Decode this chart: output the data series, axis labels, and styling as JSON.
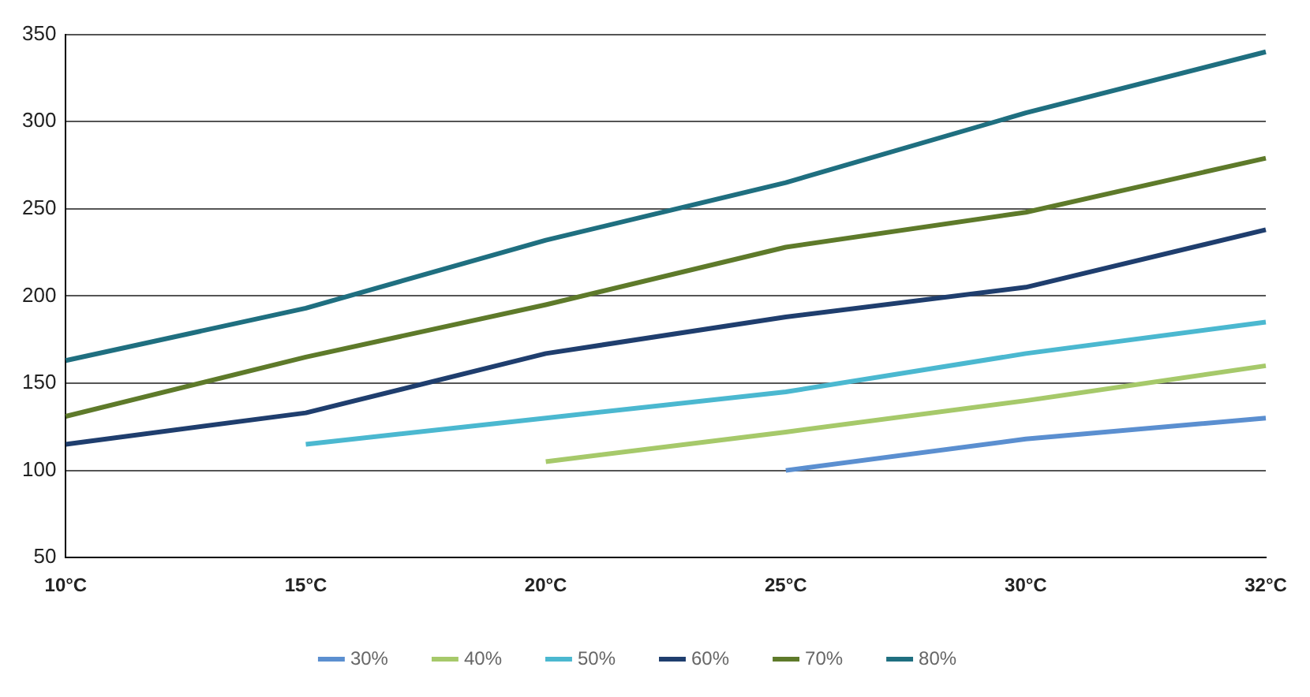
{
  "chart_data": {
    "type": "line",
    "categories": [
      "10°C",
      "15°C",
      "20°C",
      "25°C",
      "30°C",
      "32°C"
    ],
    "series": [
      {
        "name": "30%",
        "color": "#5b8fd0",
        "values": [
          null,
          null,
          null,
          100,
          118,
          130
        ]
      },
      {
        "name": "40%",
        "color": "#a6c96a",
        "values": [
          null,
          null,
          105,
          122,
          140,
          160
        ]
      },
      {
        "name": "50%",
        "color": "#4bb8d0",
        "values": [
          null,
          115,
          130,
          145,
          167,
          185
        ]
      },
      {
        "name": "60%",
        "color": "#1f3e6e",
        "values": [
          115,
          133,
          167,
          188,
          205,
          238
        ]
      },
      {
        "name": "70%",
        "color": "#5e7a2a",
        "values": [
          131,
          165,
          195,
          228,
          248,
          279
        ]
      },
      {
        "name": "80%",
        "color": "#1f6f80",
        "values": [
          163,
          193,
          232,
          265,
          305,
          340
        ]
      }
    ],
    "ylim": [
      50,
      350
    ],
    "yticks": [
      50,
      100,
      150,
      200,
      250,
      300,
      350
    ],
    "grid": "y",
    "legend": "bottom",
    "marker": "none",
    "line_style": "solid"
  }
}
